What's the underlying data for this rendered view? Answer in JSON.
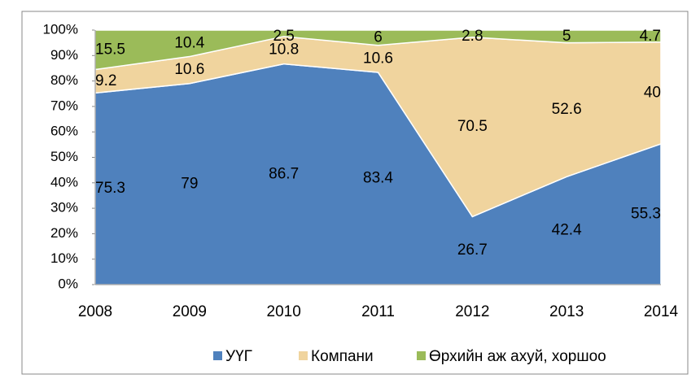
{
  "chart_data": {
    "type": "stacked_area",
    "categories": [
      "2008",
      "2009",
      "2010",
      "2011",
      "2012",
      "2013",
      "2014"
    ],
    "series": [
      {
        "name": "УҮГ",
        "color": "#4f81bd",
        "values": [
          75.3,
          79.0,
          86.7,
          83.4,
          26.7,
          42.4,
          55.3
        ]
      },
      {
        "name": "Компани",
        "color": "#f0d49e",
        "values": [
          9.2,
          10.6,
          10.8,
          10.6,
          70.5,
          52.6,
          40.0
        ]
      },
      {
        "name": "Өрхийн аж ахуй, хоршоо",
        "color": "#9bbb59",
        "values": [
          15.5,
          10.4,
          2.5,
          6.0,
          2.8,
          5.0,
          4.7
        ]
      }
    ],
    "ylim": [
      0,
      100
    ],
    "yticks": [
      {
        "value": 0,
        "label": "0%"
      },
      {
        "value": 10,
        "label": "10%"
      },
      {
        "value": 20,
        "label": "20%"
      },
      {
        "value": 30,
        "label": "30%"
      },
      {
        "value": 40,
        "label": "40%"
      },
      {
        "value": 50,
        "label": "50%"
      },
      {
        "value": 60,
        "label": "60%"
      },
      {
        "value": 70,
        "label": "70%"
      },
      {
        "value": 80,
        "label": "80%"
      },
      {
        "value": 90,
        "label": "90%"
      },
      {
        "value": 100,
        "label": "100%"
      }
    ],
    "legend": "bottom"
  }
}
